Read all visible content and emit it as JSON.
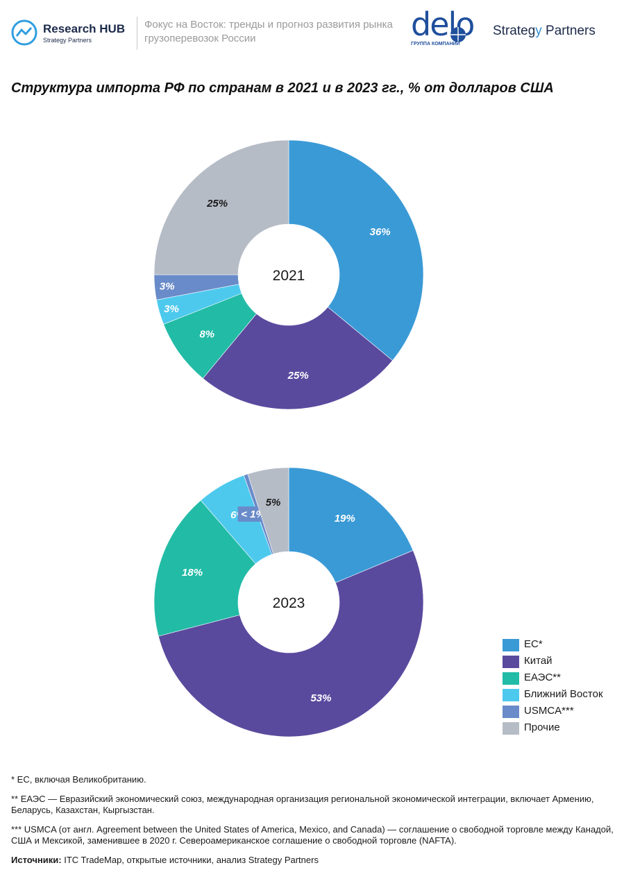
{
  "header": {
    "brand_name": "Research HUB",
    "brand_sub": "Strategy Partners",
    "report_title": "Фокус на Восток: тренды и прогноз развития рынка грузоперевозок России",
    "delo_word": "delo",
    "delo_sub": "ГРУППА КОМПАНИЙ",
    "sp_logo_a": "Strateg",
    "sp_logo_y": "y",
    "sp_logo_b": " Partners"
  },
  "title": "Структура импорта РФ по странам в 2021 и в 2023 гг., % от долларов США",
  "colors": {
    "eu": "#3a9ad6",
    "china": "#5a4a9e",
    "eaeu": "#22bba6",
    "middle_east": "#4ec9ee",
    "usmca": "#6a8bc9",
    "other": "#b6bcc6"
  },
  "chart_data": [
    {
      "type": "pie",
      "center_label": "2021",
      "categories": [
        "ЕС*",
        "Китай",
        "ЕАЭС**",
        "Ближний Восток",
        "USMCA***",
        "Прочие"
      ],
      "values": [
        36,
        25,
        8,
        3,
        3,
        25
      ],
      "labels": [
        "36%",
        "25%",
        "8%",
        "3%",
        "3%",
        "25%"
      ]
    },
    {
      "type": "pie",
      "center_label": "2023",
      "categories": [
        "ЕС*",
        "Китай",
        "ЕАЭС**",
        "Ближний Восток",
        "USMCA***",
        "Прочие"
      ],
      "values": [
        19,
        53,
        18,
        6,
        0.5,
        5
      ],
      "labels": [
        "19%",
        "53%",
        "18%",
        "6%",
        "< 1%",
        "5%"
      ]
    }
  ],
  "legend": [
    {
      "label": "ЕС*",
      "color": "#3a9ad6"
    },
    {
      "label": "Китай",
      "color": "#5a4a9e"
    },
    {
      "label": "ЕАЭС**",
      "color": "#22bba6"
    },
    {
      "label": "Ближний Восток",
      "color": "#4ec9ee"
    },
    {
      "label": "USMCA***",
      "color": "#6a8bc9"
    },
    {
      "label": "Прочие",
      "color": "#b6bcc6"
    }
  ],
  "notes": {
    "n1": "* ЕС, включая Великобританию.",
    "n2": "** ЕАЭС — Евразийский экономический союз, международная организация региональной экономической интеграции, включает Армению, Беларусь, Казахстан, Кыргызстан.",
    "n3": "*** USMCA (от англ. Agreement between the United States of America, Mexico, and Canada)  — соглашение о свободной торговле между Канадой, США и Мексикой, заменившее в 2020 г. Североамериканское соглашение о свободной торговле (NAFTA).",
    "src_label": "Источники:",
    "src_text": " ITC TradeMap, открытые источники, анализ Strategy Partners"
  }
}
